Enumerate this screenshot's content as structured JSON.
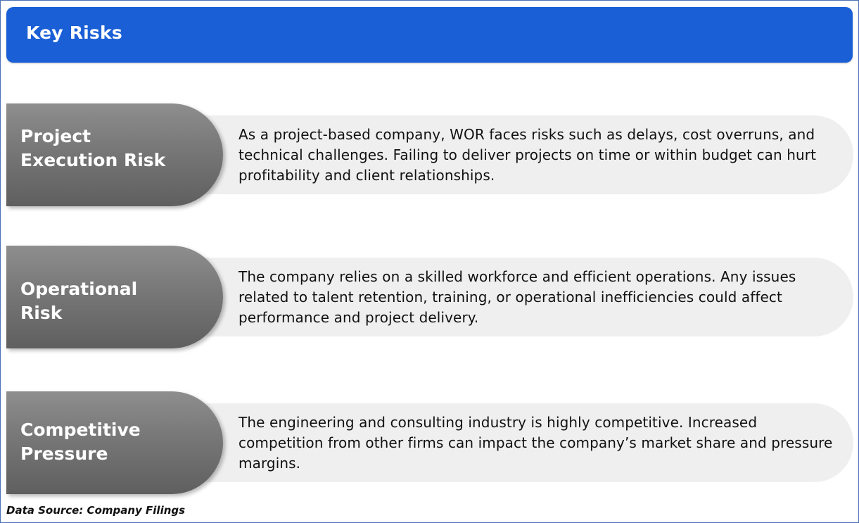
{
  "header": {
    "title": "Key Risks"
  },
  "risks": [
    {
      "title_line1": "Project",
      "title_line2": "Execution Risk",
      "description": "As a project-based company, WOR faces risks such as delays, cost overruns, and technical challenges. Failing to deliver projects on time or within budget can hurt profitability and client relationships."
    },
    {
      "title_line1": "Operational",
      "title_line2": "Risk",
      "description": "The company relies on a skilled workforce and efficient operations. Any issues related to talent retention, training, or operational inefficiencies could affect performance and project delivery."
    },
    {
      "title_line1": "Competitive",
      "title_line2": "Pressure",
      "description": "The engineering and consulting industry is highly competitive. Increased competition from other firms can impact the company’s market share and pressure margins."
    }
  ],
  "footer": {
    "source": "Data Source: Company Filings"
  },
  "colors": {
    "header_blue": "#1a5fd6",
    "tab_gray": "#777777",
    "pill_gray": "#efefef"
  }
}
